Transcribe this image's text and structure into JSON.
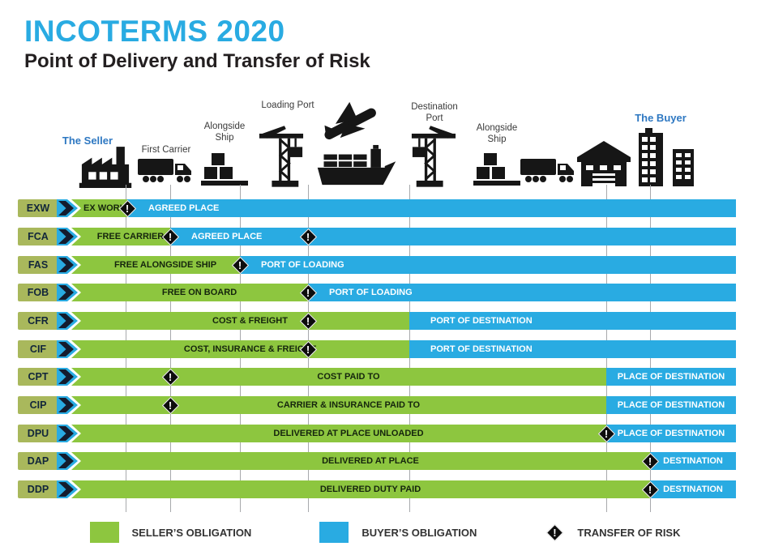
{
  "title": "INCOTERMS 2020",
  "subtitle": "Point of Delivery and Transfer of Risk",
  "colors": {
    "seller_green": "#8DC63F",
    "buyer_blue": "#29ABE2",
    "chip_olive": "#A9B85C",
    "chevron_navy": "#141C2E",
    "risk_black": "#0D0D0D",
    "gridline_gray": "#A7A9AC",
    "title_blue": "#29ABE2",
    "party_blue": "#2E78C2"
  },
  "journey": {
    "seller": "The Seller",
    "first_carrier": "First Carrier",
    "alongside_ship_1": "Alongside Ship",
    "loading_port": "Loading Port",
    "destination_port": "Destination Port",
    "alongside_ship_2": "Alongside Ship",
    "buyer": "The Buyer"
  },
  "rows": [
    {
      "code": "EXW",
      "seller_label": "EX WORKS",
      "seller_align": "left",
      "seller_end": 157,
      "buyer_label": "AGREED PLACE",
      "buyer_align": "left",
      "risk_markers": [
        157
      ]
    },
    {
      "code": "FCA",
      "seller_label": "FREE CARRIER",
      "seller_align": "center",
      "seller_end": 210,
      "buyer_label": "AGREED PLACE",
      "buyer_align": "left",
      "risk_markers": [
        210,
        380
      ]
    },
    {
      "code": "FAS",
      "seller_label": "FREE ALONGSIDE SHIP",
      "seller_align": "center",
      "seller_end": 296,
      "buyer_label": "PORT OF LOADING",
      "buyer_align": "left",
      "risk_markers": [
        296
      ]
    },
    {
      "code": "FOB",
      "seller_label": "FREE ON BOARD",
      "seller_align": "center",
      "seller_end": 380,
      "buyer_label": "PORT OF LOADING",
      "buyer_align": "left",
      "risk_markers": [
        380
      ]
    },
    {
      "code": "CFR",
      "seller_label": "COST & FREIGHT",
      "seller_align": "center",
      "seller_end": 505,
      "buyer_label": "PORT OF DESTINATION",
      "buyer_align": "left",
      "risk_markers": [
        380
      ]
    },
    {
      "code": "CIF",
      "seller_label": "COST, INSURANCE & FREIGHT",
      "seller_align": "center",
      "seller_end": 505,
      "buyer_label": "PORT OF DESTINATION",
      "buyer_align": "left",
      "risk_markers": [
        380
      ]
    },
    {
      "code": "CPT",
      "seller_label": "COST PAID TO",
      "seller_align": "center",
      "seller_end": 748,
      "buyer_label": "PLACE OF DESTINATION",
      "buyer_align": "center",
      "risk_markers": [
        210
      ]
    },
    {
      "code": "CIP",
      "seller_label": "CARRIER & INSURANCE PAID TO",
      "seller_align": "center",
      "seller_end": 748,
      "buyer_label": "PLACE OF DESTINATION",
      "buyer_align": "center",
      "risk_markers": [
        210
      ]
    },
    {
      "code": "DPU",
      "seller_label": "DELIVERED AT PLACE UNLOADED",
      "seller_align": "center",
      "seller_end": 748,
      "buyer_label": "PLACE OF DESTINATION",
      "buyer_align": "center",
      "risk_markers": [
        748
      ]
    },
    {
      "code": "DAP",
      "seller_label": "DELIVERED AT PLACE",
      "seller_align": "center",
      "seller_end": 802,
      "buyer_label": "DESTINATION",
      "buyer_align": "center",
      "risk_markers": [
        802
      ]
    },
    {
      "code": "DDP",
      "seller_label": "DELIVERED DUTY PAID",
      "seller_align": "center",
      "seller_end": 802,
      "buyer_label": "DESTINATION",
      "buyer_align": "center",
      "risk_markers": [
        802
      ]
    }
  ],
  "legend": {
    "seller": "SELLER’S OBLIGATION",
    "buyer": "BUYER’S OBLIGATION",
    "risk": "TRANSFER OF RISK"
  }
}
